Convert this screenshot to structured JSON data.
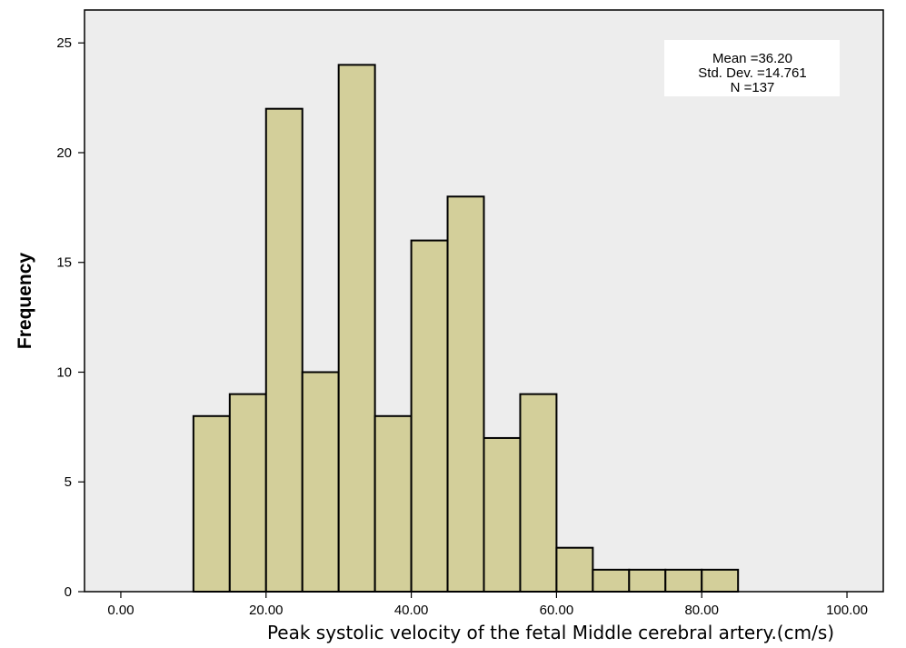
{
  "chart_data": {
    "type": "bar",
    "subtype": "histogram",
    "xlabel": "Peak systolic velocity of the fetal Middle cerebral artery.(cm/s)",
    "ylabel": "Frequency",
    "xlim": [
      -5,
      105
    ],
    "ylim": [
      0,
      26.5
    ],
    "x_ticks": [
      0,
      20,
      40,
      60,
      80,
      100
    ],
    "x_tick_labels": [
      "0.00",
      "20.00",
      "40.00",
      "60.00",
      "80.00",
      "100.00"
    ],
    "y_ticks": [
      0,
      5,
      10,
      15,
      20,
      25
    ],
    "y_tick_labels": [
      "0",
      "5",
      "10",
      "15",
      "20",
      "25"
    ],
    "bin_width": 5,
    "bins": [
      {
        "start": 10,
        "end": 15,
        "count": 8
      },
      {
        "start": 15,
        "end": 20,
        "count": 9
      },
      {
        "start": 20,
        "end": 25,
        "count": 22
      },
      {
        "start": 25,
        "end": 30,
        "count": 10
      },
      {
        "start": 30,
        "end": 35,
        "count": 24
      },
      {
        "start": 35,
        "end": 40,
        "count": 8
      },
      {
        "start": 40,
        "end": 45,
        "count": 16
      },
      {
        "start": 45,
        "end": 50,
        "count": 18
      },
      {
        "start": 50,
        "end": 55,
        "count": 7
      },
      {
        "start": 55,
        "end": 60,
        "count": 9
      },
      {
        "start": 60,
        "end": 65,
        "count": 2
      },
      {
        "start": 65,
        "end": 70,
        "count": 1
      },
      {
        "start": 70,
        "end": 75,
        "count": 1
      },
      {
        "start": 75,
        "end": 80,
        "count": 1
      },
      {
        "start": 80,
        "end": 85,
        "count": 1
      }
    ],
    "stats": {
      "mean": "Mean =36.20",
      "std_dev": "Std. Dev. =14.761",
      "n": "N =137"
    },
    "legend_position": "top-right",
    "grid": false,
    "colors": {
      "plot_background": "#ededed",
      "bar_fill": "#d3cf9a",
      "bar_stroke": "#000000",
      "stats_box": "#ffffff"
    }
  }
}
